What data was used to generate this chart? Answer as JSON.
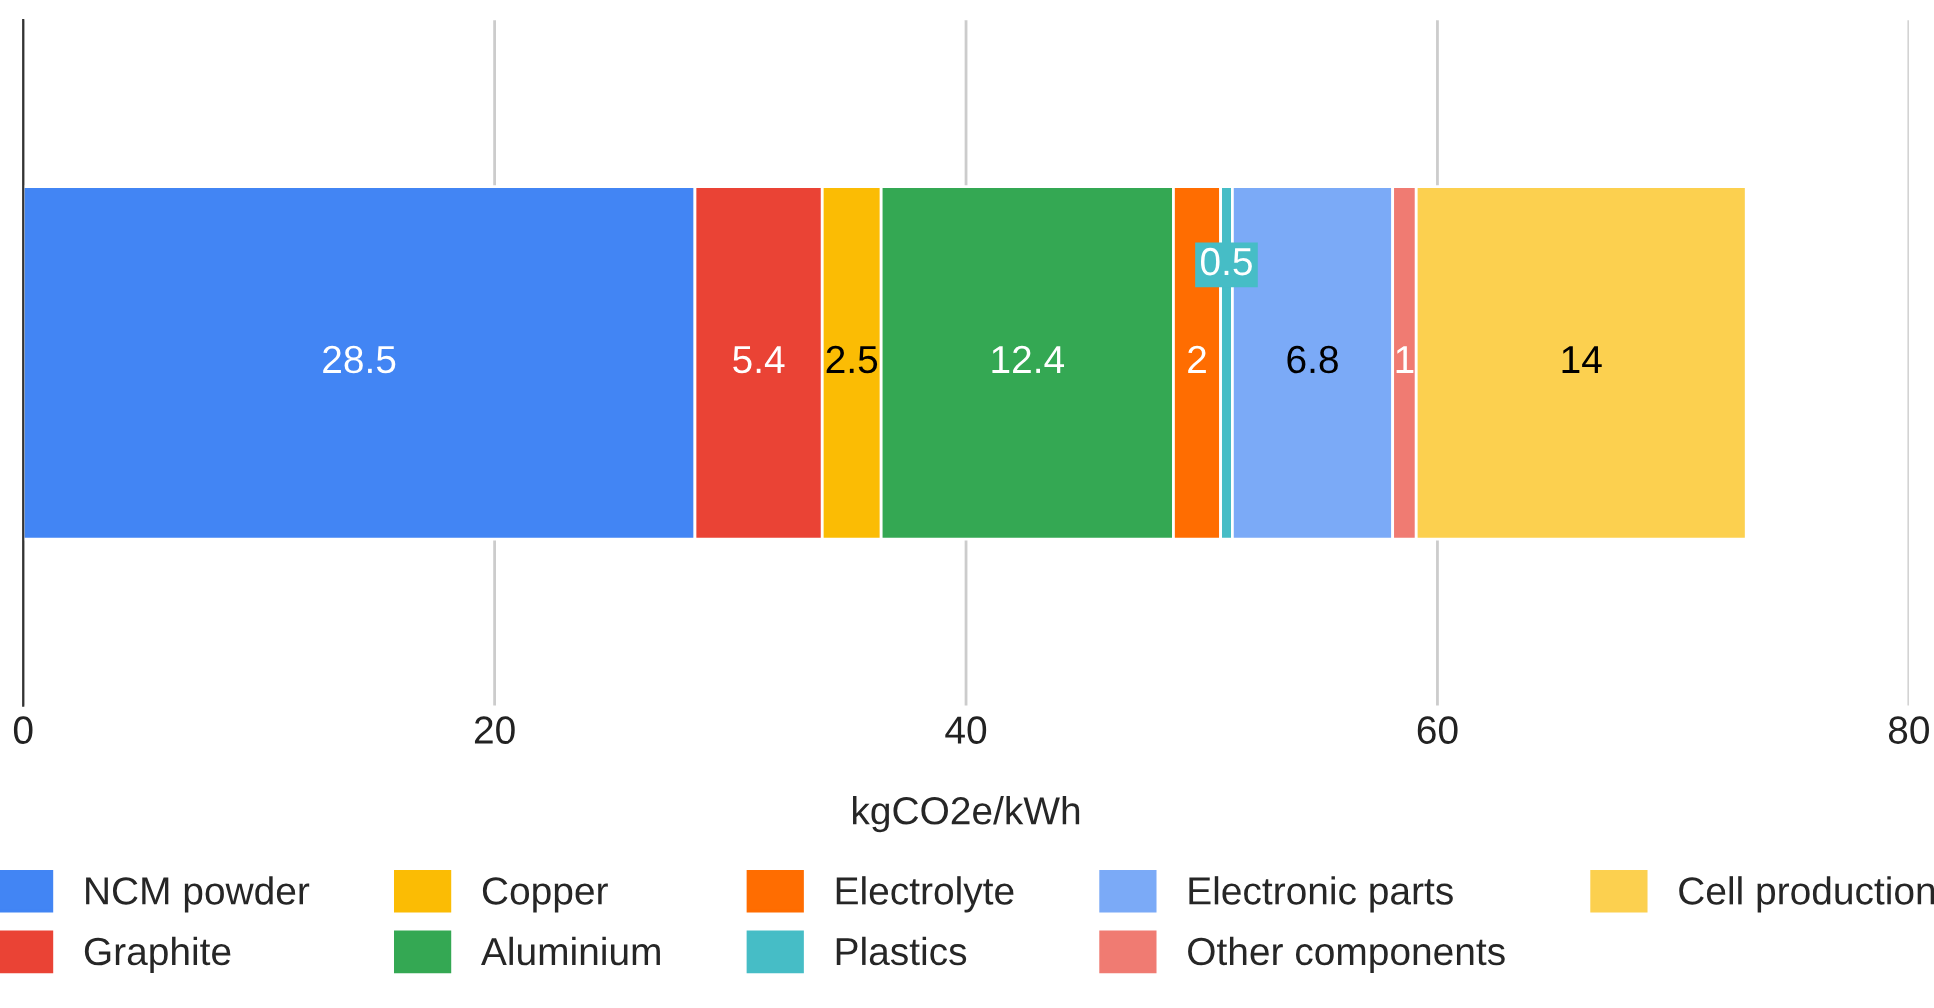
{
  "chart_data": {
    "type": "bar",
    "orientation": "horizontal",
    "stacked": true,
    "categories": [
      null
    ],
    "xlabel": "kgCO2e/kWh",
    "xlim": [
      0,
      80
    ],
    "xticks": [
      0,
      20,
      40,
      60,
      80
    ],
    "grid": "x",
    "legend": "bottom",
    "data_labels": true,
    "tick_labels": "x",
    "series": [
      {
        "name": "NCM powder",
        "color": "#4285f4",
        "values": [
          28.5
        ]
      },
      {
        "name": "Graphite",
        "color": "#ea4335",
        "values": [
          5.4
        ]
      },
      {
        "name": "Copper",
        "color": "#fbbc04",
        "values": [
          2.5
        ]
      },
      {
        "name": "Aluminium",
        "color": "#34a853",
        "values": [
          12.4
        ]
      },
      {
        "name": "Electrolyte",
        "color": "#ff6d01",
        "values": [
          2
        ]
      },
      {
        "name": "Plastics",
        "color": "#46bdc6",
        "values": [
          0.5
        ]
      },
      {
        "name": "Electronic parts",
        "color": "#7baaf7",
        "values": [
          6.8
        ]
      },
      {
        "name": "Other components",
        "color": "#f07b72",
        "values": [
          1
        ]
      },
      {
        "name": "Cell production",
        "color": "#fcd04f",
        "values": [
          14
        ]
      }
    ]
  }
}
